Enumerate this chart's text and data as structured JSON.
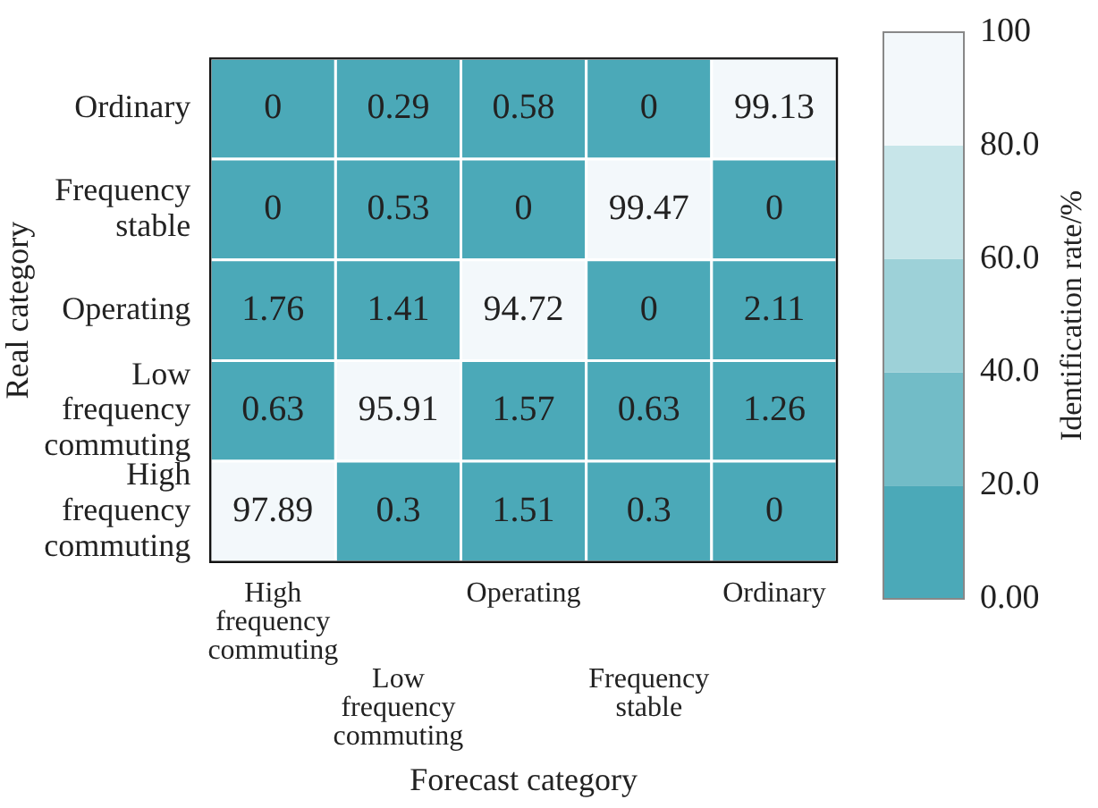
{
  "chart_data": {
    "type": "heatmap",
    "xlabel": "Forecast category",
    "ylabel": "Real category",
    "clabel": "Identification rate/%",
    "categories": [
      "High frequency commuting",
      "Low frequency commuting",
      "Operating",
      "Frequency stable",
      "Ordinary"
    ],
    "y_categories": [
      "Ordinary",
      "Frequency stable",
      "Operating",
      "Low frequency commuting",
      "High frequency commuting"
    ],
    "cells": [
      [
        0,
        0.29,
        0.58,
        0,
        99.13
      ],
      [
        0,
        0.53,
        0,
        99.47,
        0
      ],
      [
        1.76,
        1.41,
        94.72,
        0,
        2.11
      ],
      [
        0.63,
        95.91,
        1.57,
        0.63,
        1.26
      ],
      [
        97.89,
        0.3,
        1.51,
        0.3,
        0
      ]
    ],
    "clim": [
      0,
      100
    ],
    "cticks": [
      {
        "value": 0,
        "label": "0.00"
      },
      {
        "value": 20,
        "label": "20.0"
      },
      {
        "value": 40,
        "label": "40.0"
      },
      {
        "value": 60,
        "label": "60.0"
      },
      {
        "value": 80,
        "label": "80.0"
      },
      {
        "value": 100,
        "label": "100"
      }
    ],
    "colors": [
      "#4ba9b8",
      "#72bcc7",
      "#9dd1d8",
      "#c7e5e9",
      "#f3f8fb"
    ],
    "data_labels": true
  }
}
